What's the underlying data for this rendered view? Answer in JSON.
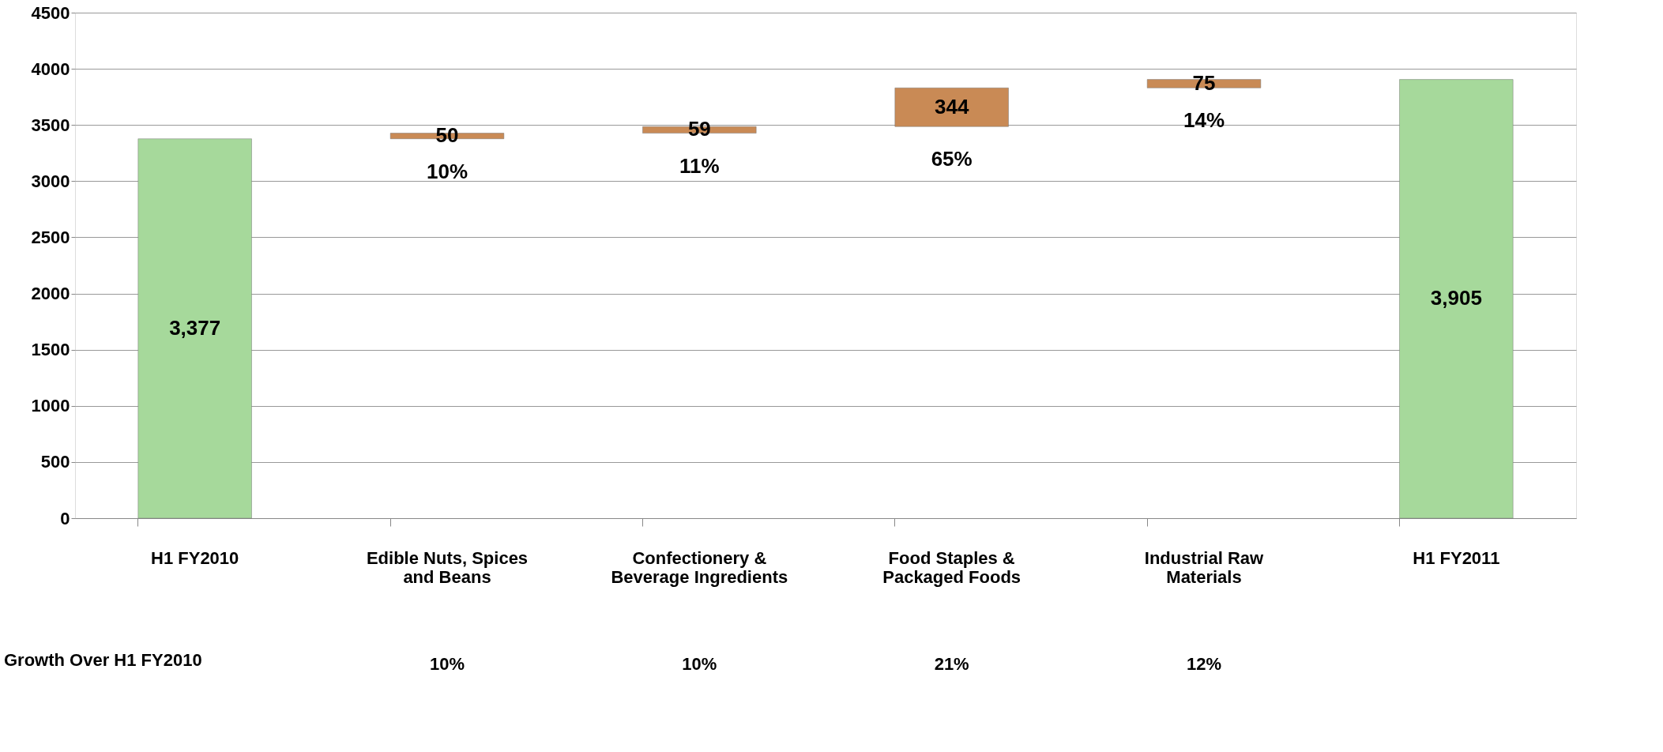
{
  "chart_data": {
    "type": "bar",
    "categories": [
      "H1 FY2010",
      "Edible Nuts, Spices and Beans",
      "Confectionery & Beverage Ingredients",
      "Food Staples & Packaged Foods",
      "Industrial Raw Materials",
      "H1 FY2011"
    ],
    "values": [
      3377,
      50,
      59,
      344,
      75,
      3905
    ],
    "base": [
      0,
      3377,
      3427,
      3486,
      3830,
      0
    ],
    "colors": [
      "#a6d99b",
      "#c98a55",
      "#c98a55",
      "#c98a55",
      "#c98a55",
      "#a6d99b"
    ],
    "value_labels": [
      "3,377",
      "50",
      "59",
      "344",
      "75",
      "3,905"
    ],
    "ylim": [
      0,
      4500
    ],
    "yticks": [
      0,
      500,
      1000,
      1500,
      2000,
      2500,
      3000,
      3500,
      4000,
      4500
    ],
    "grid": "y",
    "annotations": [
      "10%",
      "11%",
      "65%",
      "14%",
      "Growth Over H1 FY2010",
      "10%",
      "10%",
      "21%",
      "12%"
    ]
  }
}
